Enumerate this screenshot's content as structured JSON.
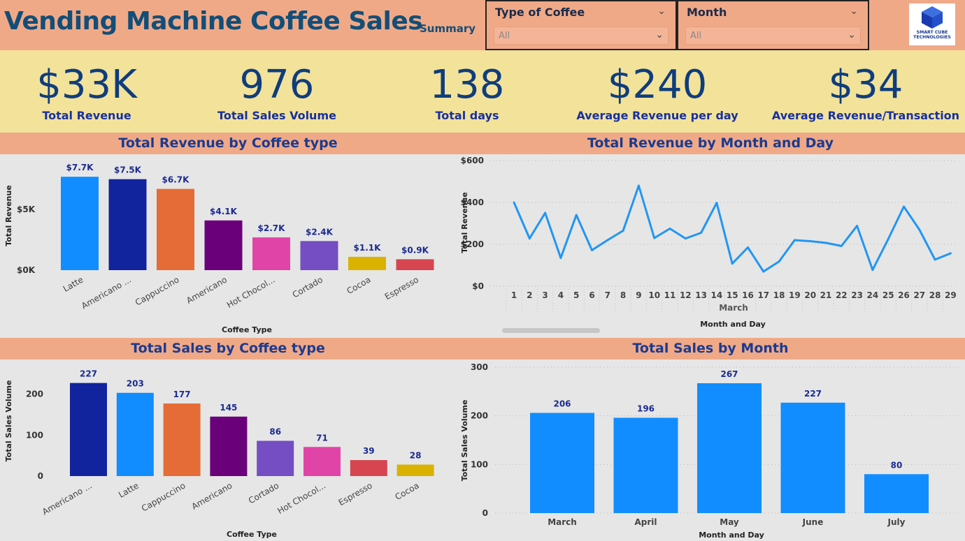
{
  "header": {
    "title": "Vending Machine Coffee Sales",
    "summary": "Summary",
    "filters": [
      {
        "label": "Type of Coffee",
        "value": "All"
      },
      {
        "label": "Month",
        "value": "All"
      }
    ],
    "logo_text": "SMART CUBE TECHNOLOGIES"
  },
  "kpis": [
    {
      "value": "$33K",
      "label": "Total Revenue"
    },
    {
      "value": "976",
      "label": "Total Sales Volume"
    },
    {
      "value": "138",
      "label": "Total days"
    },
    {
      "value": "$240",
      "label": "Average Revenue per day"
    },
    {
      "value": "$34",
      "label": "Average Revenue/Transaction"
    }
  ],
  "colors": {
    "header_bg": "#f0a987",
    "kpi_bg": "#f2e29a",
    "title_color": "#124e78",
    "line_color": "#2196f3"
  },
  "chart_data": [
    {
      "type": "bar",
      "title": "Total Revenue by Coffee type",
      "xlabel": "Coffee Type",
      "ylabel": "Total Revenue",
      "categories": [
        "Latte",
        "Americano ...",
        "Cappuccino",
        "Americano",
        "Hot Chocol...",
        "Cortado",
        "Cocoa",
        "Espresso"
      ],
      "values": [
        7.7,
        7.5,
        6.7,
        4.1,
        2.7,
        2.4,
        1.1,
        0.9
      ],
      "data_labels": [
        "$7.7K",
        "$7.5K",
        "$6.7K",
        "$4.1K",
        "$2.7K",
        "$2.4K",
        "$1.1K",
        "$0.9K"
      ],
      "colors": [
        "#118dff",
        "#12239e",
        "#e66c37",
        "#6b007b",
        "#e044a7",
        "#744ec2",
        "#d9b300",
        "#d64550"
      ],
      "ylim": [
        0,
        8
      ],
      "yticks": [
        0,
        5
      ],
      "ytick_labels": [
        "$0K",
        "$5K"
      ]
    },
    {
      "type": "line",
      "title": "Total Revenue by Month and Day",
      "xlabel": "Month and Day",
      "ylabel": "Total Revenue",
      "group_label": "March",
      "x": [
        1,
        2,
        3,
        4,
        5,
        6,
        7,
        8,
        9,
        10,
        11,
        12,
        13,
        14,
        15,
        16,
        17,
        18,
        19,
        20,
        21,
        22,
        23,
        24,
        25,
        26,
        27,
        28,
        29
      ],
      "values": [
        400,
        228,
        350,
        135,
        340,
        172,
        220,
        265,
        480,
        230,
        275,
        228,
        255,
        398,
        108,
        185,
        70,
        118,
        220,
        215,
        207,
        192,
        288,
        78,
        225,
        380,
        270,
        127,
        157
      ],
      "ylim": [
        0,
        600
      ],
      "yticks": [
        0,
        200,
        400,
        600
      ],
      "ytick_labels": [
        "$0",
        "$200",
        "$400",
        "$600"
      ]
    },
    {
      "type": "bar",
      "title": "Total Sales by Coffee type",
      "xlabel": "Coffee Type",
      "ylabel": "Total Sales Volume",
      "categories": [
        "Americano ...",
        "Latte",
        "Cappuccino",
        "Americano",
        "Cortado",
        "Hot Chocol...",
        "Espresso",
        "Cocoa"
      ],
      "values": [
        227,
        203,
        177,
        145,
        86,
        71,
        39,
        28
      ],
      "data_labels": [
        "227",
        "203",
        "177",
        "145",
        "86",
        "71",
        "39",
        "28"
      ],
      "colors": [
        "#12239e",
        "#118dff",
        "#e66c37",
        "#6b007b",
        "#744ec2",
        "#e044a7",
        "#d64550",
        "#d9b300"
      ],
      "ylim": [
        0,
        240
      ],
      "yticks": [
        0,
        100,
        200
      ],
      "ytick_labels": [
        "0",
        "100",
        "200"
      ]
    },
    {
      "type": "bar",
      "title": "Total Sales by Month",
      "xlabel": "Month and Day",
      "ylabel": "Total Sales Volume",
      "categories": [
        "March",
        "April",
        "May",
        "June",
        "July"
      ],
      "values": [
        206,
        196,
        267,
        227,
        80
      ],
      "data_labels": [
        "206",
        "196",
        "267",
        "227",
        "80"
      ],
      "colors": [
        "#118dff",
        "#118dff",
        "#118dff",
        "#118dff",
        "#118dff"
      ],
      "ylim": [
        0,
        300
      ],
      "yticks": [
        0,
        100,
        200,
        300
      ],
      "ytick_labels": [
        "0",
        "100",
        "200",
        "300"
      ]
    }
  ]
}
